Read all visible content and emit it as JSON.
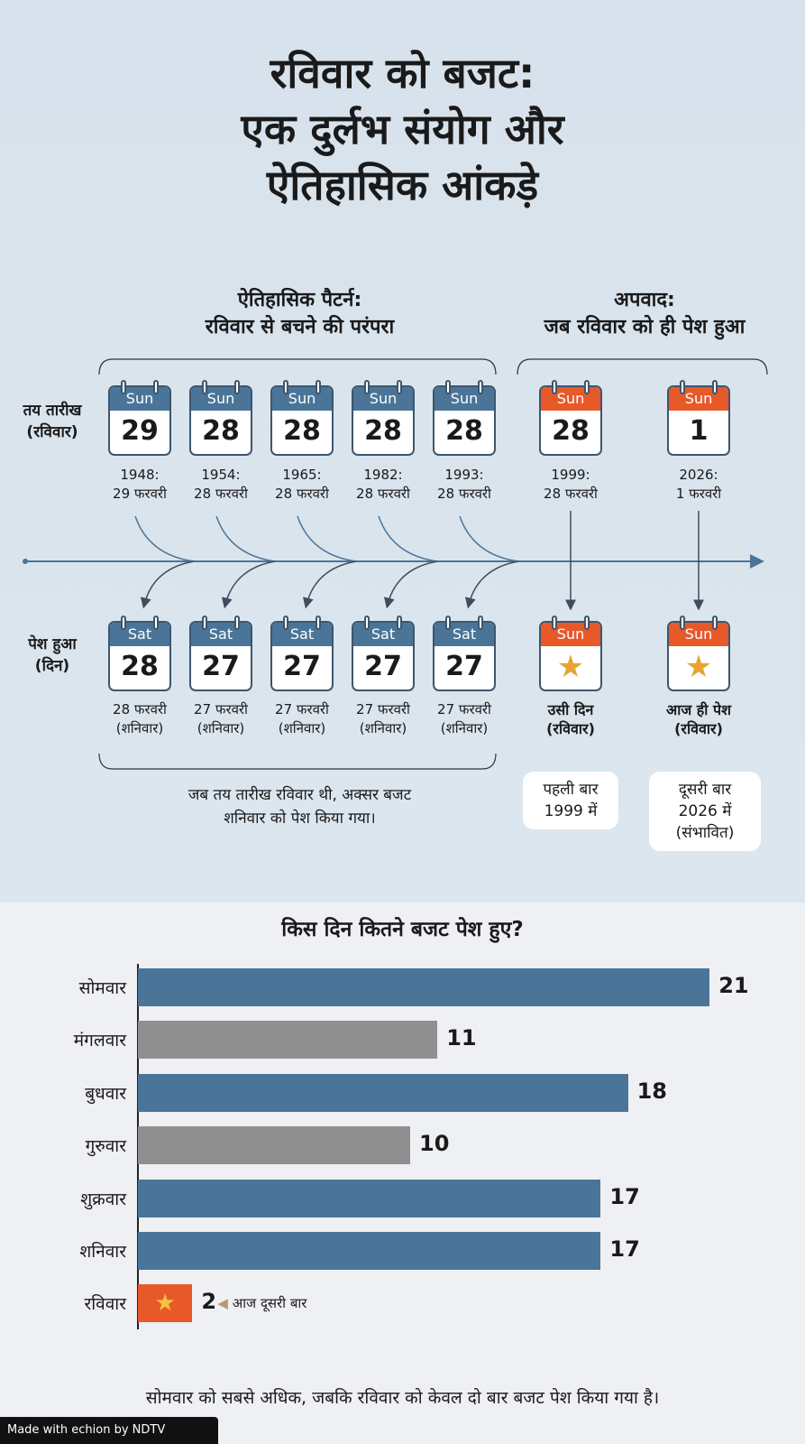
{
  "title": [
    "रविवार को बजट:",
    "एक दुर्लभ संयोग और",
    "ऐतिहासिक आंकड़े"
  ],
  "sections": {
    "pattern": [
      "ऐतिहासिक पैटर्न:",
      "रविवार से बचने की परंपरा"
    ],
    "exception": [
      "अपवाद:",
      "जब रविवार को ही पेश हुआ"
    ]
  },
  "row_labels": {
    "scheduled": [
      "तय तारीख",
      "(रविवार)"
    ],
    "presented": [
      "पेश हुआ",
      "(दिन)"
    ]
  },
  "timeline": [
    {
      "day": "Sun",
      "date": "29",
      "year": "1948:",
      "label": "29 फरवरी",
      "pres_day": "Sat",
      "pres_date": "28",
      "pres_label": [
        "28 फरवरी",
        "(शनिवार)"
      ],
      "type": "blue"
    },
    {
      "day": "Sun",
      "date": "28",
      "year": "1954:",
      "label": "28 फरवरी",
      "pres_day": "Sat",
      "pres_date": "27",
      "pres_label": [
        "27 फरवरी",
        "(शनिवार)"
      ],
      "type": "blue"
    },
    {
      "day": "Sun",
      "date": "28",
      "year": "1965:",
      "label": "28 फरवरी",
      "pres_day": "Sat",
      "pres_date": "27",
      "pres_label": [
        "27 फरवरी",
        "(शनिवार)"
      ],
      "type": "blue"
    },
    {
      "day": "Sun",
      "date": "28",
      "year": "1982:",
      "label": "28 फरवरी",
      "pres_day": "Sat",
      "pres_date": "27",
      "pres_label": [
        "27 फरवरी",
        "(शनिवार)"
      ],
      "type": "blue"
    },
    {
      "day": "Sun",
      "date": "28",
      "year": "1993:",
      "label": "28 फरवरी",
      "pres_day": "Sat",
      "pres_date": "27",
      "pres_label": [
        "27 फरवरी",
        "(शनिवार)"
      ],
      "type": "blue"
    },
    {
      "day": "Sun",
      "date": "28",
      "year": "1999:",
      "label": "28 फरवरी",
      "pres_day": "Sun",
      "pres_date": "star",
      "pres_label": [
        "उसी दिन",
        "(रविवार)"
      ],
      "type": "orange"
    },
    {
      "day": "Sun",
      "date": "1",
      "year": "2026:",
      "label": "1 फरवरी",
      "pres_day": "Sun",
      "pres_date": "star",
      "pres_label": [
        "आज ही पेश",
        "(रविवार)"
      ],
      "type": "orange"
    }
  ],
  "notes": {
    "saturday": [
      "जब तय तारीख रविवार थी, अक्सर बजट",
      "शनिवार को पेश किया गया।"
    ],
    "first": [
      "पहली बार",
      "1999 में"
    ],
    "second": [
      "दूसरी बार",
      "2026 में",
      "(संभावित)"
    ]
  },
  "colors": {
    "blue": "#4a7598",
    "gray": "#8f8f8f",
    "orange": "#e8592a",
    "star": "#e4a532"
  },
  "chart_data": {
    "type": "bar",
    "orientation": "horizontal",
    "title": "किस दिन कितने बजट पेश हुए?",
    "categories": [
      "सोमवार",
      "मंगलवार",
      "बुधवार",
      "गुरुवार",
      "शुक्रवार",
      "शनिवार",
      "रविवार"
    ],
    "values": [
      21,
      11,
      18,
      10,
      17,
      17,
      2
    ],
    "bar_colors": [
      "blue",
      "gray",
      "blue",
      "gray",
      "blue",
      "blue",
      "orange"
    ],
    "annotation": "आज दूसरी बार"
  },
  "footer": "सोमवार को सबसे अधिक, जबकि रविवार को केवल दो बार बजट पेश किया गया है।",
  "made_with": "Made with echion by NDTV"
}
